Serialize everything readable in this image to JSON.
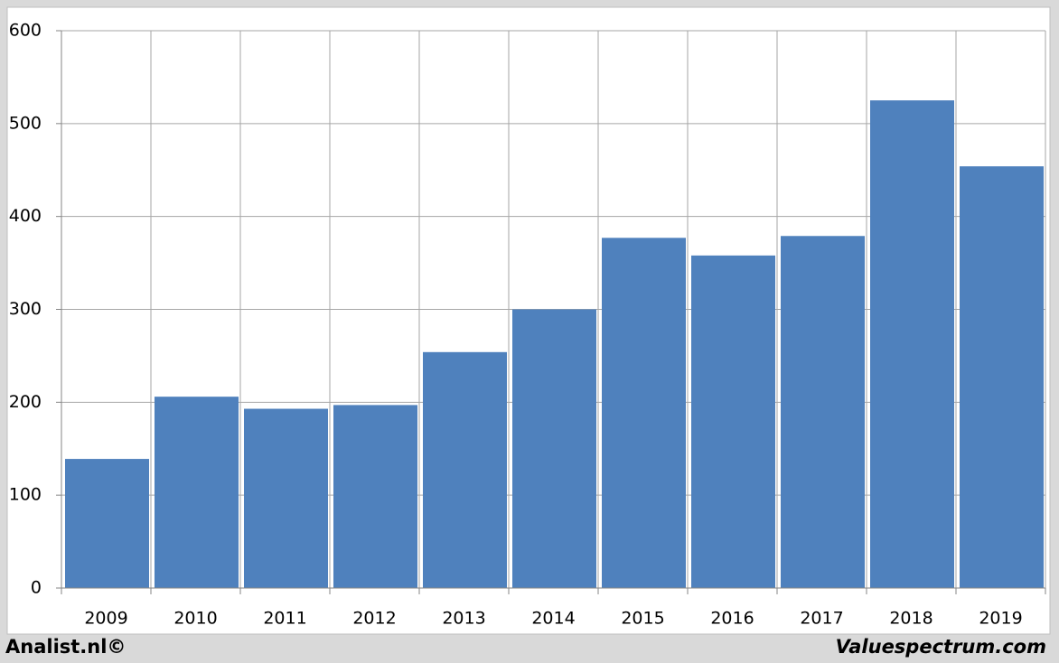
{
  "chart_data": {
    "type": "bar",
    "categories": [
      "2009",
      "2010",
      "2011",
      "2012",
      "2013",
      "2014",
      "2015",
      "2016",
      "2017",
      "2018",
      "2019"
    ],
    "values": [
      139,
      206,
      193,
      197,
      254,
      300,
      377,
      358,
      379,
      525,
      454
    ],
    "color": "#4f81bd",
    "ylim": [
      0,
      600
    ],
    "yticks": [
      0,
      100,
      200,
      300,
      400,
      500,
      600
    ],
    "grid": true,
    "annotations": [
      "Analist.nl©",
      "Valuespectrum.com"
    ]
  }
}
